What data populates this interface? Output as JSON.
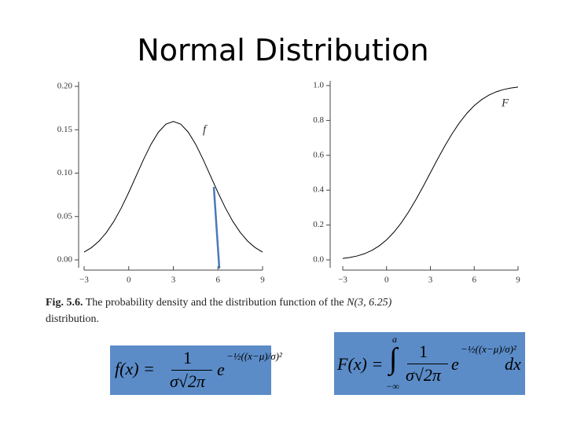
{
  "slide_title": "Normal Distribution",
  "chart_data": [
    {
      "type": "line",
      "curve_label": "f",
      "x": [
        -3,
        -2.5,
        -2,
        -1.5,
        -1,
        -0.5,
        0,
        0.5,
        1,
        1.5,
        2,
        2.5,
        3,
        3.5,
        4,
        4.5,
        5,
        5.5,
        6,
        6.5,
        7,
        7.5,
        8,
        8.5,
        9
      ],
      "values": [
        0.009,
        0.0142,
        0.0216,
        0.0316,
        0.0444,
        0.0599,
        0.0777,
        0.0968,
        0.1159,
        0.1333,
        0.1473,
        0.1564,
        0.1596,
        0.1564,
        0.1473,
        0.1333,
        0.1159,
        0.0968,
        0.0777,
        0.0599,
        0.0444,
        0.0316,
        0.0216,
        0.0142,
        0.009
      ],
      "color": "#000000",
      "xlim": [
        -3,
        9
      ],
      "xticks": [
        {
          "value": -3,
          "label": "−3"
        },
        0,
        3,
        6,
        9
      ],
      "ylim": [
        0,
        0.2
      ],
      "yticks": [
        {
          "value": 0,
          "label": "0.00"
        },
        0.05,
        {
          "value": 0.1,
          "label": "0.10"
        },
        0.15,
        {
          "value": 0.2,
          "label": "0.20"
        }
      ]
    },
    {
      "type": "line",
      "curve_label": "F",
      "x": [
        -3,
        -2.5,
        -2,
        -1.5,
        -1,
        -0.5,
        0,
        0.5,
        1,
        1.5,
        2,
        2.5,
        3,
        3.5,
        4,
        4.5,
        5,
        5.5,
        6,
        6.5,
        7,
        7.5,
        8,
        8.5,
        9
      ],
      "values": [
        0.0082,
        0.0139,
        0.0228,
        0.0359,
        0.0548,
        0.0808,
        0.1151,
        0.1587,
        0.2119,
        0.2743,
        0.3446,
        0.4207,
        0.5,
        0.5793,
        0.6554,
        0.7257,
        0.7881,
        0.8413,
        0.8849,
        0.9192,
        0.9452,
        0.9641,
        0.9772,
        0.9861,
        0.9918
      ],
      "color": "#000000",
      "xlim": [
        -3,
        9
      ],
      "xticks": [
        {
          "value": -3,
          "label": "−3"
        },
        0,
        3,
        6,
        9
      ],
      "ylim": [
        0,
        1
      ],
      "yticks": [
        {
          "value": 0,
          "label": "0.0"
        },
        0.2,
        0.4,
        0.6,
        0.8,
        {
          "value": 1,
          "label": "1.0"
        }
      ]
    }
  ],
  "caption": {
    "line1_prefix": "Fig. 5.6.",
    "line1": "The probability density and the distribution function of the",
    "notation": "N(3, 6.25)",
    "line2": "distribution."
  },
  "formulas": [
    {
      "lhs": "f(x) =",
      "numerator": "1",
      "denominator": "σ√2π",
      "base": "e",
      "exponent": "−½((x−μ)/σ)²"
    },
    {
      "lhs": "F(x) =",
      "integral": "∫",
      "upper": "a",
      "lower": "−∞",
      "numerator": "1",
      "denominator": "σ√2π",
      "base": "e",
      "exponent": "−½((x−μ)/σ)²",
      "differential": "dx"
    }
  ]
}
